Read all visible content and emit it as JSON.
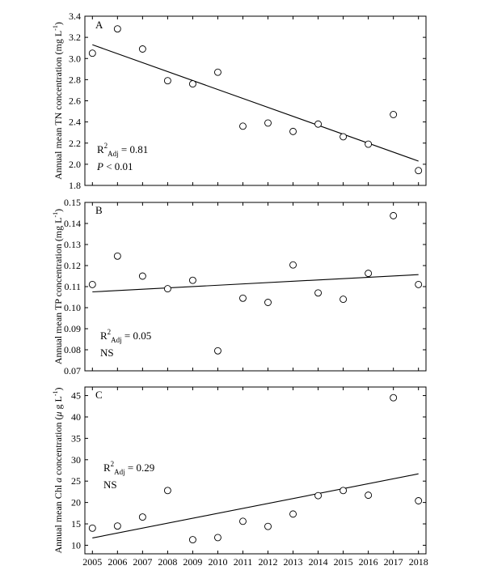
{
  "chart_data": [
    {
      "type": "scatter",
      "panel_label": "A",
      "ylabel_prefix": "Annual mean TN concentration (mg L",
      "ylabel_sup": "-1",
      "ylabel_suffix": ")",
      "ylim": [
        1.8,
        3.4
      ],
      "yticks": [
        1.8,
        2.0,
        2.2,
        2.4,
        2.6,
        2.8,
        3.0,
        3.2,
        3.4
      ],
      "ytick_labels": [
        "1.8",
        "2.0",
        "2.2",
        "2.4",
        "2.6",
        "2.8",
        "3.0",
        "3.2",
        "3.4"
      ],
      "x": [
        2005,
        2006,
        2007,
        2008,
        2009,
        2010,
        2011,
        2012,
        2013,
        2014,
        2015,
        2016,
        2017,
        2018
      ],
      "y": [
        3.05,
        3.28,
        3.09,
        2.79,
        2.76,
        2.87,
        2.36,
        2.39,
        2.31,
        2.38,
        2.26,
        2.19,
        2.47,
        1.94
      ],
      "fit_line": {
        "x": [
          2005,
          2018
        ],
        "y": [
          3.13,
          2.03
        ]
      },
      "annotation": {
        "r_main": "R",
        "r_sup": "2",
        "r_sub": "Adj",
        "r_value": " = 0.81",
        "line2_prefix": "P",
        "line2_text": " < 0.01"
      }
    },
    {
      "type": "scatter",
      "panel_label": "B",
      "ylabel_prefix": "Annual mean TP concentration  (mg L",
      "ylabel_sup": "-1",
      "ylabel_suffix": ")",
      "ylim": [
        0.07,
        0.15
      ],
      "yticks": [
        0.07,
        0.08,
        0.09,
        0.1,
        0.11,
        0.12,
        0.13,
        0.14,
        0.15
      ],
      "ytick_labels": [
        "0.07",
        "0.08",
        "0.09",
        "0.10",
        "0.11",
        "0.12",
        "0.13",
        "0.14",
        "0.15"
      ],
      "x": [
        2005,
        2006,
        2007,
        2008,
        2009,
        2010,
        2011,
        2012,
        2013,
        2014,
        2015,
        2016,
        2017,
        2018
      ],
      "y": [
        0.111,
        0.1245,
        0.115,
        0.109,
        0.113,
        0.0795,
        0.1045,
        0.1025,
        0.1203,
        0.107,
        0.104,
        0.1163,
        0.1437,
        0.111
      ],
      "fit_line": {
        "x": [
          2005,
          2018
        ],
        "y": [
          0.1075,
          0.1157
        ]
      },
      "annotation": {
        "r_main": "R",
        "r_sup": "2",
        "r_sub": "Adj",
        "r_value": " = 0.05",
        "line2_prefix": "",
        "line2_text": "NS"
      }
    },
    {
      "type": "scatter",
      "panel_label": "C",
      "ylabel_prefix": "Annual mean Chl ",
      "ylabel_italic": "a",
      "ylabel_middle": " concentration (",
      "ylabel_mu": "μ",
      "ylabel_after_mu": " g L",
      "ylabel_sup": "-1",
      "ylabel_suffix": ")",
      "ylim": [
        8,
        47
      ],
      "yticks": [
        10,
        15,
        20,
        25,
        30,
        35,
        40,
        45
      ],
      "ytick_labels": [
        "10",
        "15",
        "20",
        "25",
        "30",
        "35",
        "40",
        "45"
      ],
      "x": [
        2005,
        2006,
        2007,
        2008,
        2009,
        2010,
        2011,
        2012,
        2013,
        2014,
        2015,
        2016,
        2017,
        2018
      ],
      "y": [
        14.0,
        14.5,
        16.6,
        22.8,
        11.3,
        11.8,
        15.6,
        14.4,
        17.3,
        21.6,
        22.8,
        21.7,
        44.5,
        20.4
      ],
      "fit_line": {
        "x": [
          2005,
          2018
        ],
        "y": [
          11.7,
          26.7
        ]
      },
      "annotation": {
        "r_main": "R",
        "r_sup": "2",
        "r_sub": "Adj",
        "r_value": " = 0.29",
        "line2_prefix": "",
        "line2_text": "NS"
      }
    }
  ],
  "x_axis": {
    "ticks": [
      2005,
      2006,
      2007,
      2008,
      2009,
      2010,
      2011,
      2012,
      2013,
      2014,
      2015,
      2016,
      2017,
      2018
    ],
    "tick_labels": [
      "2005",
      "2006",
      "2007",
      "2008",
      "2009",
      "2010",
      "2011",
      "2012",
      "2013",
      "2014",
      "2015",
      "2016",
      "2017",
      "2018"
    ],
    "xlim": [
      2004.7,
      2018.3
    ]
  }
}
